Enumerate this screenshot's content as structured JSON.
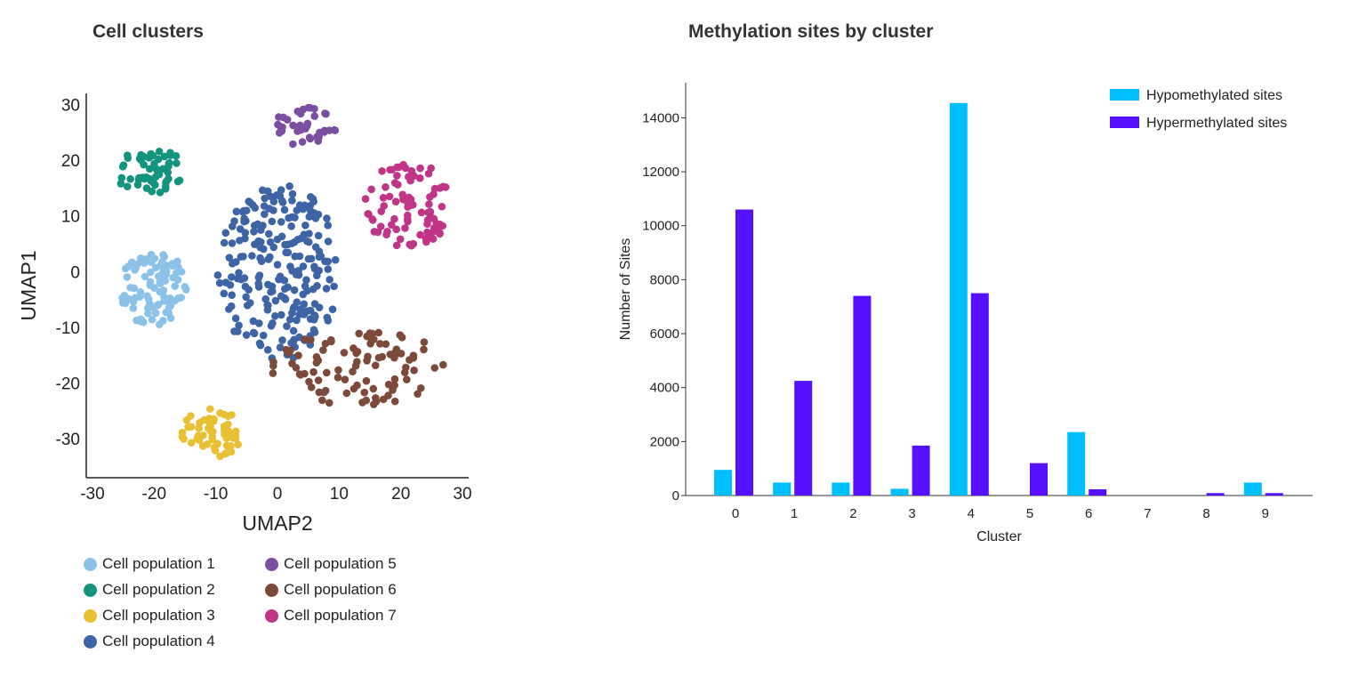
{
  "umap": {
    "title": "Cell clusters",
    "xlabel": "UMAP2",
    "ylabel": "UMAP1",
    "xticks": [
      -30,
      -20,
      -10,
      0,
      10,
      20,
      30
    ],
    "yticks": [
      30,
      20,
      10,
      0,
      -10,
      -20,
      -30
    ],
    "xlim": [
      -31,
      31
    ],
    "ylim": [
      -37,
      32
    ],
    "clusters": [
      {
        "name": "Cell population 1",
        "color": "#8cc2e8",
        "center": [
          -20,
          -3
        ],
        "spread": [
          5.5,
          7
        ],
        "n": 90,
        "seed": 11
      },
      {
        "name": "Cell population 2",
        "color": "#14937f",
        "center": [
          -20.5,
          18
        ],
        "spread": [
          6,
          4
        ],
        "n": 55,
        "seed": 23
      },
      {
        "name": "Cell population 3",
        "color": "#e8c033",
        "center": [
          -10.5,
          -29
        ],
        "spread": [
          5,
          4.5
        ],
        "n": 55,
        "seed": 37
      },
      {
        "name": "Cell population 4",
        "color": "#3e64a5",
        "center": [
          0,
          0
        ],
        "spread": [
          10,
          16
        ],
        "n": 230,
        "seed": 41
      },
      {
        "name": "Cell population 5",
        "color": "#7b4fa0",
        "center": [
          4.5,
          26
        ],
        "spread": [
          5,
          3.5
        ],
        "n": 38,
        "seed": 53
      },
      {
        "name": "Cell population 6",
        "color": "#7b4a3a",
        "center": [
          13,
          -17
        ],
        "spread": [
          14,
          7
        ],
        "n": 95,
        "seed": 67
      },
      {
        "name": "Cell population 7",
        "color": "#c03587",
        "center": [
          21,
          12
        ],
        "spread": [
          7,
          8
        ],
        "n": 85,
        "seed": 79
      }
    ]
  },
  "chart_data": {
    "type": "bar",
    "title": "Methylation sites by cluster",
    "xlabel": "Cluster",
    "ylabel": "Number of Sites",
    "categories": [
      "0",
      "1",
      "2",
      "3",
      "4",
      "5",
      "6",
      "7",
      "8",
      "9"
    ],
    "yticks": [
      0,
      2000,
      4000,
      6000,
      8000,
      10000,
      12000,
      14000
    ],
    "ylim": [
      0,
      15300
    ],
    "legend_position": "top-right",
    "series": [
      {
        "name": "Hypomethylated sites",
        "color": "#00bfff",
        "values": [
          950,
          480,
          480,
          250,
          14550,
          0,
          2350,
          0,
          0,
          480
        ]
      },
      {
        "name": "Hypermethylated sites",
        "color": "#5511ff",
        "values": [
          10600,
          4250,
          7400,
          1850,
          7500,
          1200,
          230,
          0,
          90,
          90
        ]
      }
    ]
  }
}
